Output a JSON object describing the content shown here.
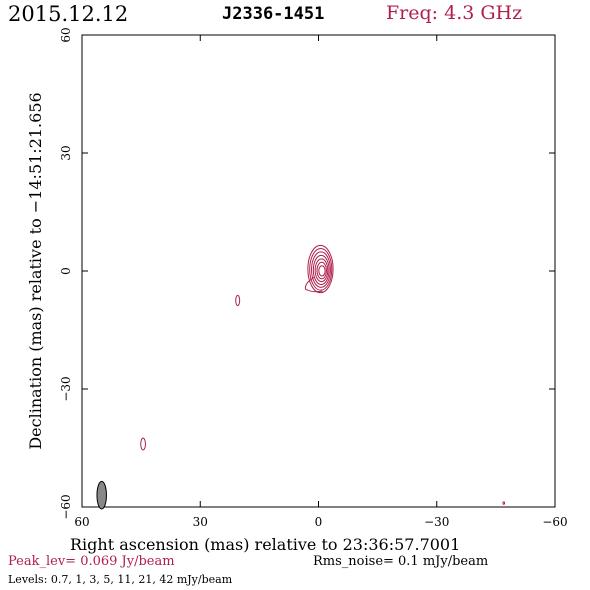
{
  "header": {
    "date": "2015.12.12",
    "source": "J2336-1451",
    "frequency": "Freq: 4.3 GHz"
  },
  "footer": {
    "peak": "Peak_lev=  0.069 Jy/beam",
    "rms": "Rms_noise=   0.1 mJy/beam",
    "levels": "Levels: 0.7,    1,    3,    5,   11,   21,   42  mJy/beam"
  },
  "colors": {
    "contour": "#b0204a",
    "beam": "#888888",
    "text": "#000000"
  },
  "chart_data": {
    "type": "contour",
    "xlabel": "Right ascension (mas) relative to 23:36:57.7001",
    "ylabel": "Declination (mas) relative to −14:51:21.656",
    "xlim": [
      60,
      -60
    ],
    "ylim": [
      -60,
      60
    ],
    "x_ticks": [
      60,
      30,
      0,
      -30,
      -60
    ],
    "x_tick_labels": [
      "60",
      "30",
      "0",
      "−30",
      "−60"
    ],
    "y_ticks": [
      -60,
      -30,
      0,
      30,
      60
    ],
    "y_tick_labels": [
      "−60",
      "−30",
      "0",
      "30",
      "60"
    ],
    "levels_mJy": [
      0.7,
      1,
      3,
      5,
      11,
      21,
      42
    ],
    "peak_Jy_per_beam": 0.069,
    "rms_mJy_per_beam": 0.1,
    "core": {
      "x": -0.5,
      "y": 0.5,
      "contours": [
        {
          "ra": 3.2,
          "rdec": 6.0
        },
        {
          "ra": 2.8,
          "rdec": 5.3
        },
        {
          "ra": 2.4,
          "rdec": 4.5
        },
        {
          "ra": 2.0,
          "rdec": 3.7
        },
        {
          "ra": 1.6,
          "rdec": 2.9
        },
        {
          "ra": 1.2,
          "rdec": 2.1
        },
        {
          "ra": 0.8,
          "rdec": 1.3
        }
      ]
    },
    "components": [
      {
        "x": 20.5,
        "y": -7.5,
        "ra": 0.5,
        "rdec": 1.3
      },
      {
        "x": 44.5,
        "y": -44.0,
        "ra": 0.6,
        "rdec": 1.5
      },
      {
        "x": -47.0,
        "y": -59.0,
        "ra": 0.2,
        "rdec": 0.3
      }
    ],
    "beam": {
      "x": 55.0,
      "y": -57.0,
      "bmaj": 3.5,
      "bmin": 1.2
    }
  }
}
